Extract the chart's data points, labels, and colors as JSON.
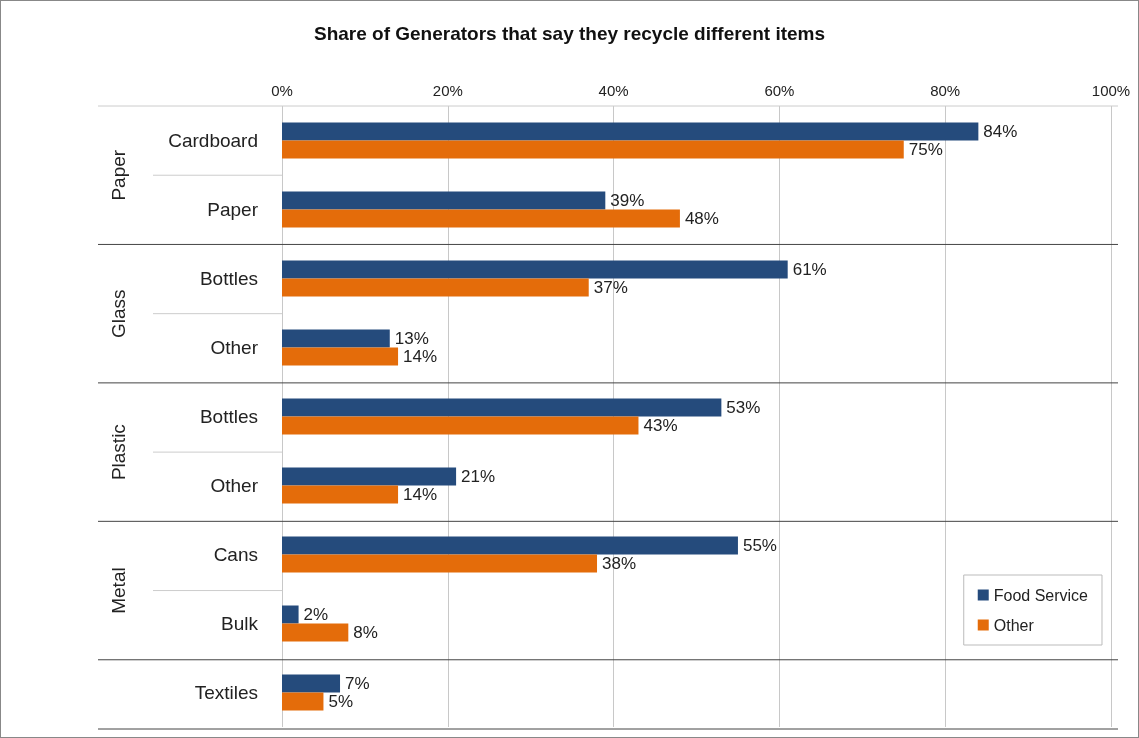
{
  "chart_data": {
    "type": "bar",
    "orientation": "horizontal",
    "title": "Share of Generators that say they recycle different items",
    "categories": [
      "Cardboard",
      "Paper",
      "Bottles",
      "Other",
      "Bottles",
      "Other",
      "Cans",
      "Bulk",
      "Textiles"
    ],
    "series": [
      {
        "name": "Food Service",
        "color": "#254b7c",
        "values": [
          84,
          39,
          61,
          13,
          53,
          21,
          55,
          2,
          7
        ],
        "value_labels": [
          "84%",
          "39%",
          "61%",
          "13%",
          "53%",
          "21%",
          "55%",
          "2%",
          "7%"
        ]
      },
      {
        "name": "Other",
        "color": "#e46c0a",
        "values": [
          75,
          48,
          37,
          14,
          43,
          14,
          38,
          8,
          5
        ],
        "value_labels": [
          "75%",
          "48%",
          "37%",
          "14%",
          "43%",
          "14%",
          "38%",
          "8%",
          "5%"
        ]
      }
    ],
    "annotations": [
      "Paper",
      "Glass",
      "Plastic",
      "Metal"
    ],
    "xlim": [
      0,
      100
    ],
    "xticks": [
      {
        "value": 0,
        "label": "0%"
      },
      {
        "value": 20,
        "label": "20%"
      },
      {
        "value": 40,
        "label": "40%"
      },
      {
        "value": 60,
        "label": "60%"
      },
      {
        "value": 80,
        "label": "80%"
      },
      {
        "value": 100,
        "label": "100%"
      }
    ],
    "grid": "x",
    "legend": "bottom right"
  }
}
